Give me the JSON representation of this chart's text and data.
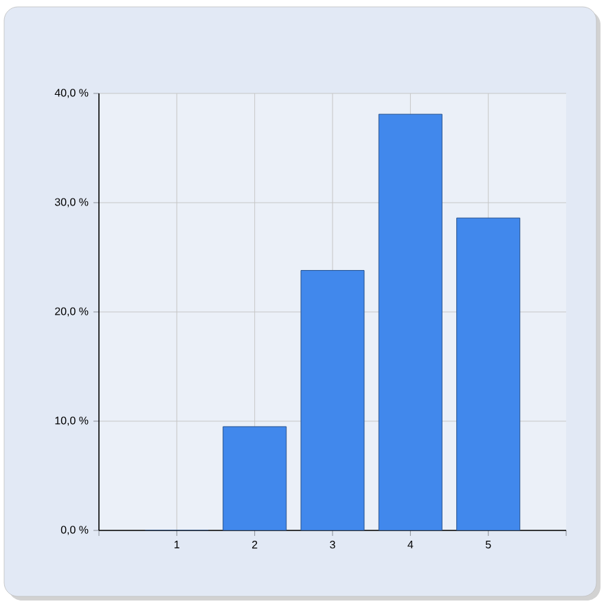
{
  "chart_data": {
    "type": "bar",
    "categories": [
      "1",
      "2",
      "3",
      "4",
      "5"
    ],
    "values": [
      0,
      9.5,
      23.8,
      38.1,
      28.6
    ],
    "color": "#4188ec",
    "ylim": [
      0,
      40
    ],
    "yticks": [
      {
        "value": 0,
        "label": "0,0 %"
      },
      {
        "value": 10,
        "label": "10,0 %"
      },
      {
        "value": 20,
        "label": "20,0 %"
      },
      {
        "value": 30,
        "label": "30,0 %"
      },
      {
        "value": 40,
        "label": "40,0 %"
      }
    ],
    "grid": true
  }
}
